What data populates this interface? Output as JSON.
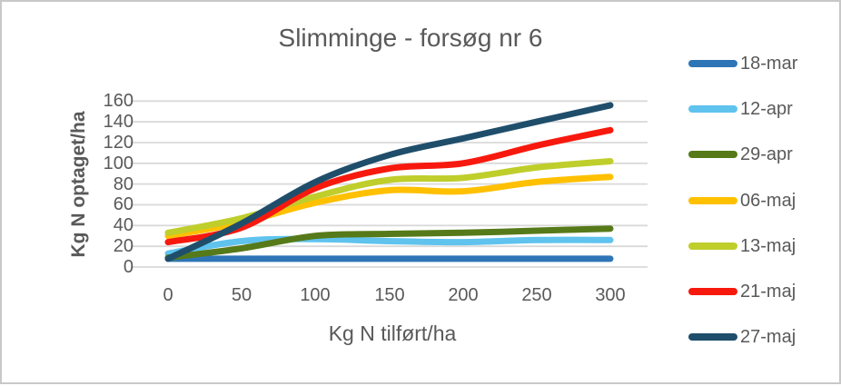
{
  "window": {
    "background": "#FFFFFF",
    "border_color": "#C8C8C8"
  },
  "chart_data": {
    "type": "line",
    "title": "Slimminge - forsøg nr 6",
    "xlabel": "Kg N tilført/ha",
    "ylabel": "Kg N optaget/ha",
    "x": [
      0,
      50,
      100,
      150,
      200,
      250,
      300
    ],
    "x_tick_labels": [
      "0",
      "50",
      "100",
      "150",
      "200",
      "250",
      "300"
    ],
    "y_tick_labels": [
      "0",
      "20",
      "40",
      "60",
      "80",
      "100",
      "120",
      "140",
      "160"
    ],
    "ylim": [
      0,
      160
    ],
    "ytick_step": 20,
    "grid": true,
    "smoothed_lines": true,
    "legend_position": "right",
    "text_color": "#595959",
    "gridline_color": "#D9D9D9",
    "series": [
      {
        "name": "18-mar",
        "color": "#2E75B6",
        "values": [
          8,
          8,
          8,
          8,
          8,
          8,
          8
        ]
      },
      {
        "name": "12-apr",
        "color": "#5FC3EE",
        "values": [
          13,
          25,
          27,
          25,
          24,
          26,
          26
        ]
      },
      {
        "name": "29-apr",
        "color": "#567A19",
        "values": [
          9,
          18,
          30,
          32,
          33,
          35,
          37
        ]
      },
      {
        "name": "06-maj",
        "color": "#FFC000",
        "values": [
          30,
          43,
          62,
          74,
          73,
          82,
          87
        ]
      },
      {
        "name": "13-maj",
        "color": "#BFCE2B",
        "values": [
          33,
          47,
          68,
          84,
          86,
          96,
          102
        ]
      },
      {
        "name": "21-maj",
        "color": "#F7190E",
        "values": [
          24,
          38,
          76,
          95,
          100,
          117,
          132
        ]
      },
      {
        "name": "27-maj",
        "color": "#1F4E6B",
        "values": [
          8,
          42,
          82,
          108,
          124,
          140,
          156
        ]
      }
    ]
  }
}
